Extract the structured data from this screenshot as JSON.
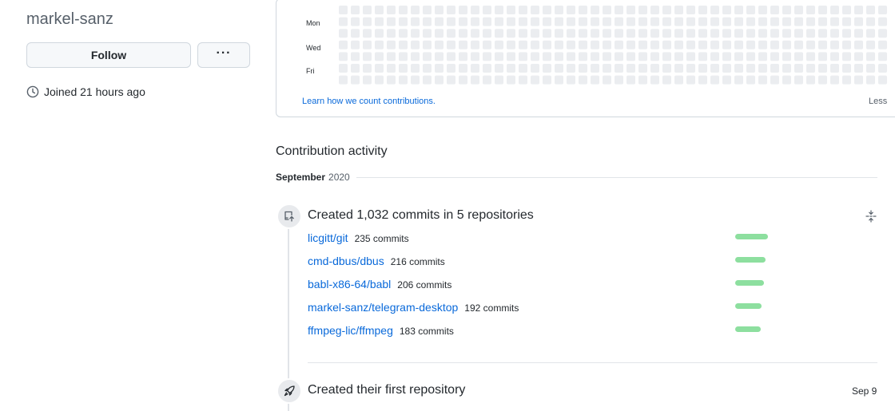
{
  "profile": {
    "username": "markel-sanz",
    "follow_label": "Follow",
    "more_label": "···",
    "joined_text": "Joined 21 hours ago"
  },
  "calendar": {
    "day_labels": [
      "Mon",
      "Wed",
      "Fri"
    ],
    "learn_link": "Learn how we count contributions.",
    "legend_less": "Less",
    "empty_color": "#ebedf0"
  },
  "activity": {
    "section_title": "Contribution activity",
    "month": "September",
    "year": "2020",
    "commits_event": {
      "title": "Created 1,032 commits in 5 repositories",
      "repos": [
        {
          "name": "licgitt/git",
          "commits": "235 commits",
          "value": 235
        },
        {
          "name": "cmd-dbus/dbus",
          "commits": "216 commits",
          "value": 216
        },
        {
          "name": "babl-x86-64/babl",
          "commits": "206 commits",
          "value": 206
        },
        {
          "name": "markel-sanz/telegram-desktop",
          "commits": "192 commits",
          "value": 192
        },
        {
          "name": "ffmpeg-lic/ffmpeg",
          "commits": "183 commits",
          "value": 183
        }
      ]
    },
    "repo_event": {
      "title": "Created their first repository",
      "date": "Sep 9"
    }
  },
  "colors": {
    "link": "#0969da",
    "bar": "#8ddf9f",
    "empty_cell": "#ebedf0"
  }
}
